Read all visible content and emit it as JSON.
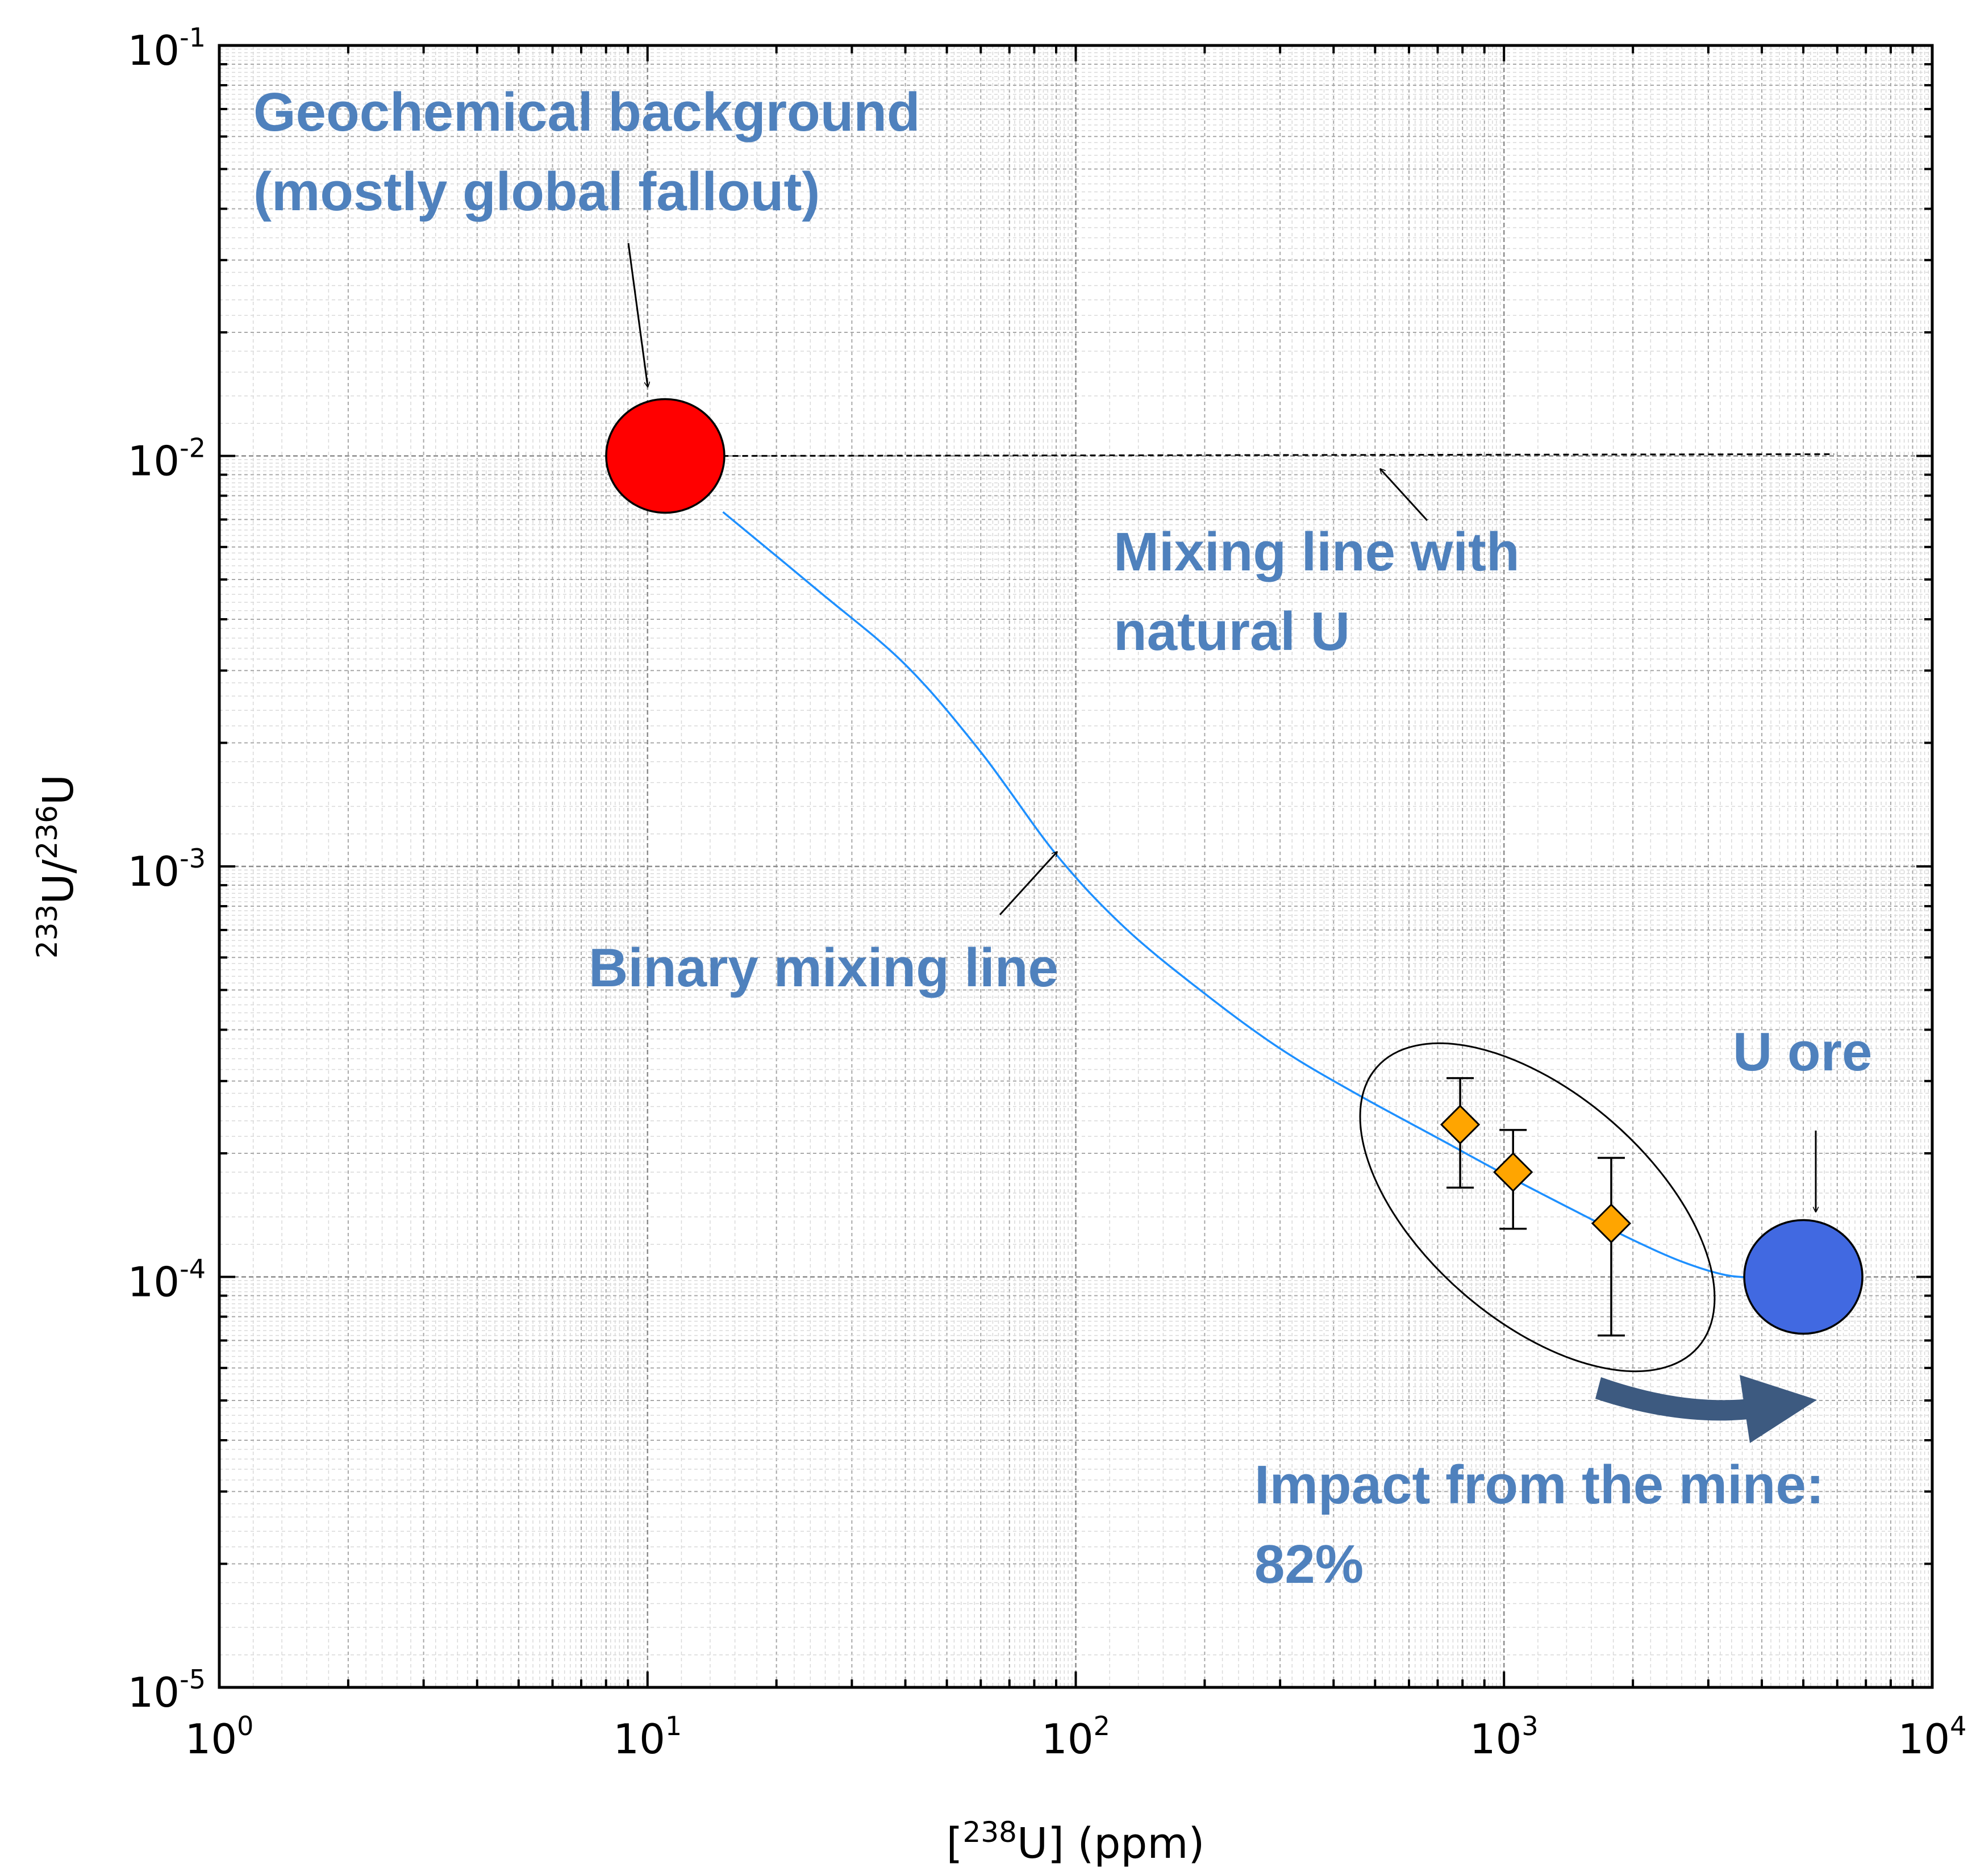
{
  "chart_data": {
    "type": "scatter",
    "x_scale": "log",
    "y_scale": "log",
    "xlim": [
      1,
      10000
    ],
    "ylim": [
      1e-05,
      0.1
    ],
    "grid": true,
    "xlabel": {
      "prefix": "[",
      "sup": "238",
      "main": "U] (ppm)"
    },
    "ylabel": {
      "sup1": "233",
      "mid": "U/",
      "sup2": "236",
      "end": "U"
    },
    "x_ticks": [
      {
        "base": "10",
        "exp": "0"
      },
      {
        "base": "10",
        "exp": "1"
      },
      {
        "base": "10",
        "exp": "2"
      },
      {
        "base": "10",
        "exp": "3"
      },
      {
        "base": "10",
        "exp": "4"
      }
    ],
    "y_ticks": [
      {
        "base": "10",
        "exp": "-5"
      },
      {
        "base": "10",
        "exp": "-4"
      },
      {
        "base": "10",
        "exp": "-3"
      },
      {
        "base": "10",
        "exp": "-2"
      },
      {
        "base": "10",
        "exp": "-1"
      }
    ],
    "endmembers": [
      {
        "id": "geochemical-background",
        "x": 11,
        "y": 0.01,
        "color": "#ff0000"
      },
      {
        "id": "u-ore",
        "x": 5000,
        "y": 0.0001,
        "color": "#4169e1"
      }
    ],
    "samples": {
      "color": "#ffa500",
      "points": [
        {
          "x": 790,
          "y": 0.000235,
          "y_low": 0.000165,
          "y_high": 0.000305
        },
        {
          "x": 1050,
          "y": 0.00018,
          "y_low": 0.000131,
          "y_high": 0.000228
        },
        {
          "x": 1780,
          "y": 0.000135,
          "y_low": 7.2e-05,
          "y_high": 0.000195
        }
      ]
    },
    "binary_mixing_line": {
      "color": "#1e90ff",
      "x": [
        15,
        25,
        40,
        60,
        90,
        130,
        200,
        300,
        450,
        700,
        1000,
        1500,
        2000,
        2600,
        3300,
        4000
      ],
      "y": [
        0.0073,
        0.0047,
        0.0031,
        0.0019,
        0.00107,
        0.00071,
        0.00049,
        0.00036,
        0.00028,
        0.000218,
        0.000178,
        0.000143,
        0.000123,
        0.000109,
        0.000101,
        9.95e-05
      ]
    },
    "natural_u_mixing_line": {
      "x": [
        15,
        5900
      ],
      "y": [
        0.01,
        0.0101
      ],
      "style": "dashed"
    },
    "annotations": {
      "background_line1": "Geochemical background",
      "background_line2": "(mostly global fallout)",
      "natural_line1": "Mixing line with",
      "natural_line2": "natural U",
      "binary": "Binary mixing line",
      "ore": "U ore",
      "impact_line1": "Impact from the mine:",
      "impact_line2": "82%"
    },
    "arrow_color": "#3d5a80"
  }
}
